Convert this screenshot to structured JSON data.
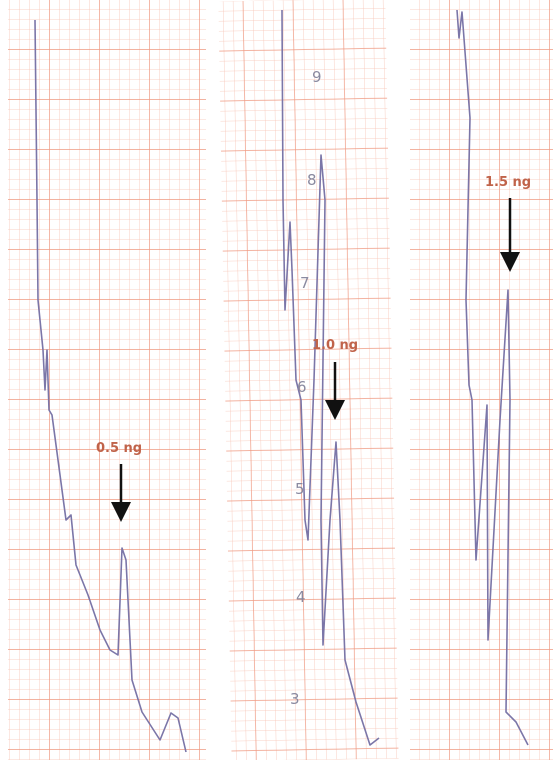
{
  "strips": [
    {
      "label": "0.5 ng"
    },
    {
      "label": "1.0 ng"
    },
    {
      "label": "1.5 ng"
    }
  ],
  "scale_marks": [
    9,
    8,
    7,
    6,
    5,
    4,
    3
  ]
}
